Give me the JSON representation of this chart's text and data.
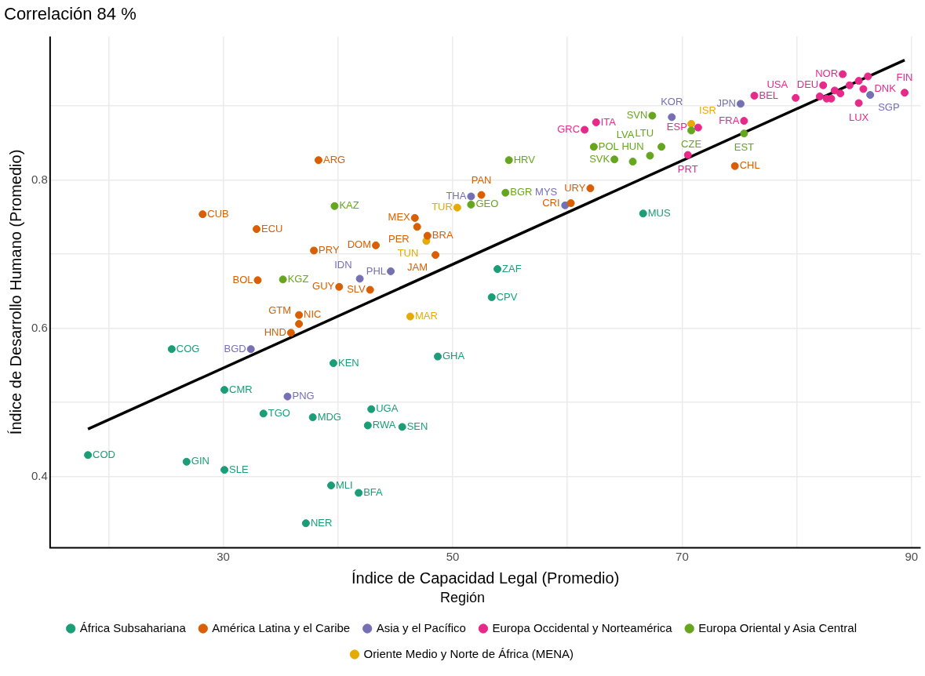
{
  "chart_data": {
    "type": "scatter",
    "title": "Correlación 84 %",
    "xlabel": "Índice de Capacidad Legal (Promedio)",
    "ylabel": "Índice de Desarrollo Humano (Promedio)",
    "legend_title": "Región",
    "legend": "bottom",
    "grid": true,
    "marker": "circle",
    "xlim": [
      14.9,
      90.8
    ],
    "ylim": [
      0.304,
      0.994
    ],
    "xticks": [
      {
        "value": 20,
        "label": null
      },
      30,
      {
        "value": 40,
        "label": null
      },
      50,
      {
        "value": 60,
        "label": null
      },
      70,
      {
        "value": 80,
        "label": null
      },
      90
    ],
    "yticks": [
      0.4,
      {
        "value": 0.5,
        "label": null
      },
      0.6,
      {
        "value": 0.7,
        "label": null
      },
      0.8,
      {
        "value": 0.9,
        "label": null
      }
    ],
    "series": [
      {
        "name": "África Subsahariana",
        "color": "#1b9e77",
        "x": [
          18.2,
          26.8,
          30.1,
          30.1,
          33.5,
          37.8,
          25.5,
          39.6,
          39.4,
          37.2,
          41.8,
          42.9,
          42.6,
          45.6,
          48.7,
          53.9,
          53.4,
          66.6
        ],
        "values": [
          0.429,
          0.42,
          0.409,
          0.517,
          0.485,
          0.48,
          0.572,
          0.553,
          0.388,
          0.337,
          0.378,
          0.491,
          0.469,
          0.467,
          0.562,
          0.68,
          0.642,
          0.755
        ],
        "value_labels": [
          "COD",
          "GIN",
          "SLE",
          "CMR",
          "TGO",
          "MDG",
          "COG",
          "KEN",
          "MLI",
          "NER",
          "BFA",
          "UGA",
          "RWA",
          "SEN",
          "GHA",
          "ZAF",
          "CPV",
          "MUS"
        ]
      },
      {
        "name": "América Latina y el Caribe",
        "color": "#d95f02",
        "x": [
          28.2,
          32.9,
          38.3,
          37.9,
          43.3,
          33.0,
          40.1,
          42.8,
          36.6,
          36.6,
          35.9,
          46.7,
          46.9,
          47.8,
          48.5,
          52.5,
          60.3,
          62.0,
          74.6
        ],
        "values": [
          0.754,
          0.734,
          0.827,
          0.705,
          0.712,
          0.665,
          0.656,
          0.652,
          0.618,
          0.606,
          0.594,
          0.749,
          0.737,
          0.725,
          0.699,
          0.78,
          0.769,
          0.789,
          0.819
        ],
        "value_labels": [
          "CUB",
          "ECU",
          "ARG",
          "PRY",
          "DOM",
          "BOL",
          "GUY",
          "SLV",
          "NIC",
          "GTM",
          "HND",
          "MEX",
          "PER",
          "BRA",
          "JAM",
          "PAN",
          "CRI",
          "URY",
          "CHL"
        ]
      },
      {
        "name": "Asia y el Pacífico",
        "color": "#7570b3",
        "x": [
          32.4,
          35.6,
          41.9,
          44.6,
          51.6,
          59.8,
          75.1,
          69.1,
          86.4
        ],
        "values": [
          0.572,
          0.508,
          0.667,
          0.677,
          0.778,
          0.766,
          0.903,
          0.885,
          0.915
        ],
        "value_labels": [
          "BGD",
          "PNG",
          "IDN",
          "PHL",
          "THA",
          "MYS",
          "JPN",
          "KOR",
          "SGP"
        ]
      },
      {
        "name": "Europa Occidental y Norteamérica",
        "color": "#e7298a",
        "x": [
          61.5,
          62.5,
          70.5,
          71.4,
          75.4,
          76.3,
          79.9,
          84.0,
          82.3,
          89.4,
          85.8,
          85.4,
          82.6,
          83.0,
          82.0,
          83.8,
          83.3,
          84.6,
          85.4,
          86.2
        ],
        "values": [
          0.868,
          0.878,
          0.834,
          0.871,
          0.88,
          0.914,
          0.911,
          0.943,
          0.928,
          0.918,
          0.923,
          0.904,
          0.91,
          0.91,
          0.913,
          0.917,
          0.921,
          0.928,
          0.934,
          0.94
        ],
        "value_labels": [
          "GRC",
          "ITA",
          "PRT",
          "ESP",
          "FRA",
          "BEL",
          "USA",
          "NOR",
          "DEU",
          "FIN",
          "DNK",
          "LUX",
          null,
          null,
          null,
          null,
          null,
          null,
          null,
          null
        ]
      },
      {
        "name": "Europa Oriental y Asia Central",
        "color": "#66a61e",
        "x": [
          39.7,
          35.2,
          51.6,
          54.6,
          54.9,
          67.4,
          64.1,
          62.3,
          65.7,
          67.2,
          68.2,
          70.8,
          75.4
        ],
        "values": [
          0.765,
          0.666,
          0.767,
          0.783,
          0.827,
          0.887,
          0.828,
          0.845,
          0.825,
          0.833,
          0.845,
          0.867,
          0.863
        ],
        "value_labels": [
          "KAZ",
          "KGZ",
          "GEO",
          "BGR",
          "HRV",
          "SVN",
          "SVK",
          "POL",
          "HUN",
          "LVA",
          "LTU",
          "CZE",
          "EST"
        ]
      },
      {
        "name": "Oriente Medio y Norte de África (MENA)",
        "color": "#e6ab02",
        "x": [
          50.4,
          47.7,
          46.3,
          70.8
        ],
        "values": [
          0.763,
          0.718,
          0.616,
          0.876
        ],
        "value_labels": [
          "TUR",
          "TUN",
          "MAR",
          "ISR"
        ]
      },
      {
        "type": "line",
        "marker": "none",
        "color": "#000000",
        "x": [
          18.2,
          89.4
        ],
        "values": [
          0.464,
          0.962
        ]
      }
    ]
  }
}
